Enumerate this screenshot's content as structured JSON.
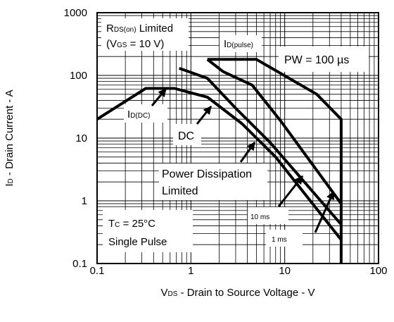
{
  "chart_data": {
    "type": "line",
    "title": "",
    "xlabel": {
      "sym": "V",
      "sub": "DS",
      "rest": " - Drain to Source Voltage - V"
    },
    "ylabel": {
      "sym": "I",
      "sub": "D",
      "rest": " - Drain Current - A"
    },
    "xscale": "log",
    "yscale": "log",
    "xlim": [
      0.1,
      100
    ],
    "ylim": [
      0.1,
      1000
    ],
    "grid": true,
    "xticks": [
      {
        "value": 0.1,
        "label": "0.1"
      },
      {
        "value": 1,
        "label": "1"
      },
      {
        "value": 10,
        "label": "10"
      },
      {
        "value": 100,
        "label": "100"
      }
    ],
    "yticks": [
      {
        "value": 0.1,
        "label": "0.1"
      },
      {
        "value": 1,
        "label": "1"
      },
      {
        "value": 10,
        "label": "10"
      },
      {
        "value": 100,
        "label": "100"
      },
      {
        "value": 1000,
        "label": "1000"
      }
    ],
    "series": [
      {
        "name": "DC",
        "points": [
          [
            0.1,
            20
          ],
          [
            0.33,
            62
          ],
          [
            0.67,
            62
          ],
          [
            1.5,
            45
          ],
          [
            3.5,
            17
          ],
          [
            8,
            5
          ],
          [
            40,
            0.24
          ]
        ]
      },
      {
        "name": "10 ms",
        "points": [
          [
            0.75,
            130
          ],
          [
            1.5,
            90
          ],
          [
            3,
            30
          ],
          [
            7,
            8.5
          ],
          [
            40,
            0.42
          ]
        ]
      },
      {
        "name": "1 ms",
        "points": [
          [
            1.5,
            180
          ],
          [
            2.2,
            115
          ],
          [
            4.5,
            70
          ],
          [
            9,
            19
          ],
          [
            40,
            0.9
          ]
        ]
      },
      {
        "name": "PW = 100 µs",
        "points": [
          [
            1.5,
            180
          ],
          [
            5,
            180
          ],
          [
            22,
            50
          ],
          [
            40,
            20
          ],
          [
            40,
            0.1
          ]
        ]
      }
    ],
    "annotations": [
      {
        "id": "rds",
        "lines": [
          {
            "sym": "R",
            "sub": "DS(on)",
            "rest": " Limited"
          },
          {
            "sym": "(V",
            "sub": "GS",
            "rest": " = 10 V)"
          }
        ]
      },
      {
        "id": "idpulse",
        "sym": "I",
        "sub": "D(pulse)"
      },
      {
        "id": "pw",
        "text": "PW = 100 µs"
      },
      {
        "id": "iddc",
        "sym": "I",
        "sub": "D(DC)"
      },
      {
        "id": "dc",
        "text": "DC"
      },
      {
        "id": "pdl",
        "lines": [
          "Power Dissipation",
          "Limited"
        ]
      },
      {
        "id": "tc",
        "lines": [
          {
            "sym": "T",
            "sub": "C",
            "rest": " = 25°C"
          },
          {
            "text": "Single Pulse"
          }
        ]
      },
      {
        "id": "ten",
        "text": "10 ms"
      },
      {
        "id": "one",
        "text": "1 ms"
      }
    ],
    "colors": {
      "line": "#000000",
      "grid": "#000000",
      "background": "#ffffff"
    }
  }
}
